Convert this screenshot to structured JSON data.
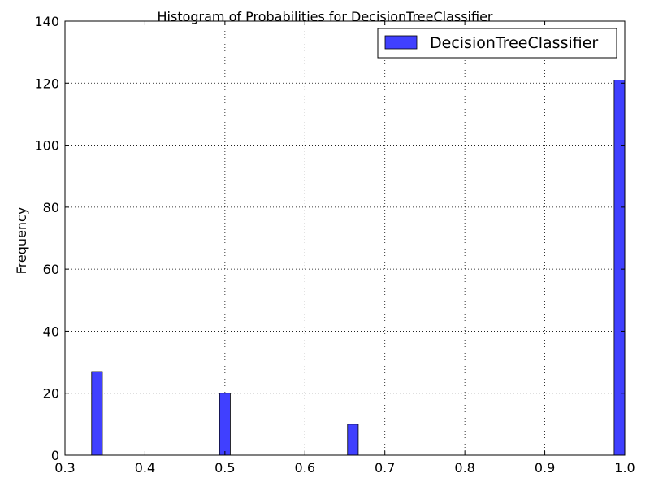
{
  "chart_data": {
    "type": "bar",
    "subtype": "histogram",
    "title": "Histogram of Probabilities for DecisionTreeClassifier",
    "xlabel": "",
    "ylabel": "Frequency",
    "xlim": [
      0.3,
      1.0
    ],
    "ylim": [
      0,
      140
    ],
    "xticks": [
      0.3,
      0.4,
      0.5,
      0.6,
      0.7,
      0.8,
      0.9,
      1.0
    ],
    "xtick_labels": [
      "0.3",
      "0.4",
      "0.5",
      "0.6",
      "0.7",
      "0.8",
      "0.9",
      "1.0"
    ],
    "yticks": [
      0,
      20,
      40,
      60,
      80,
      100,
      120,
      140
    ],
    "ytick_labels": [
      "0",
      "20",
      "40",
      "60",
      "80",
      "100",
      "120",
      "140"
    ],
    "grid": true,
    "grid_style": "dotted",
    "legend_position": "top-right",
    "series": [
      {
        "name": "DecisionTreeClassifier",
        "color": "#4040ff",
        "bins": [
          {
            "x0": 0.3333,
            "x1": 0.3467,
            "count": 27
          },
          {
            "x0": 0.4933,
            "x1": 0.5067,
            "count": 20
          },
          {
            "x0": 0.6533,
            "x1": 0.6667,
            "count": 10
          },
          {
            "x0": 0.9867,
            "x1": 1.0,
            "count": 121
          }
        ]
      }
    ]
  }
}
